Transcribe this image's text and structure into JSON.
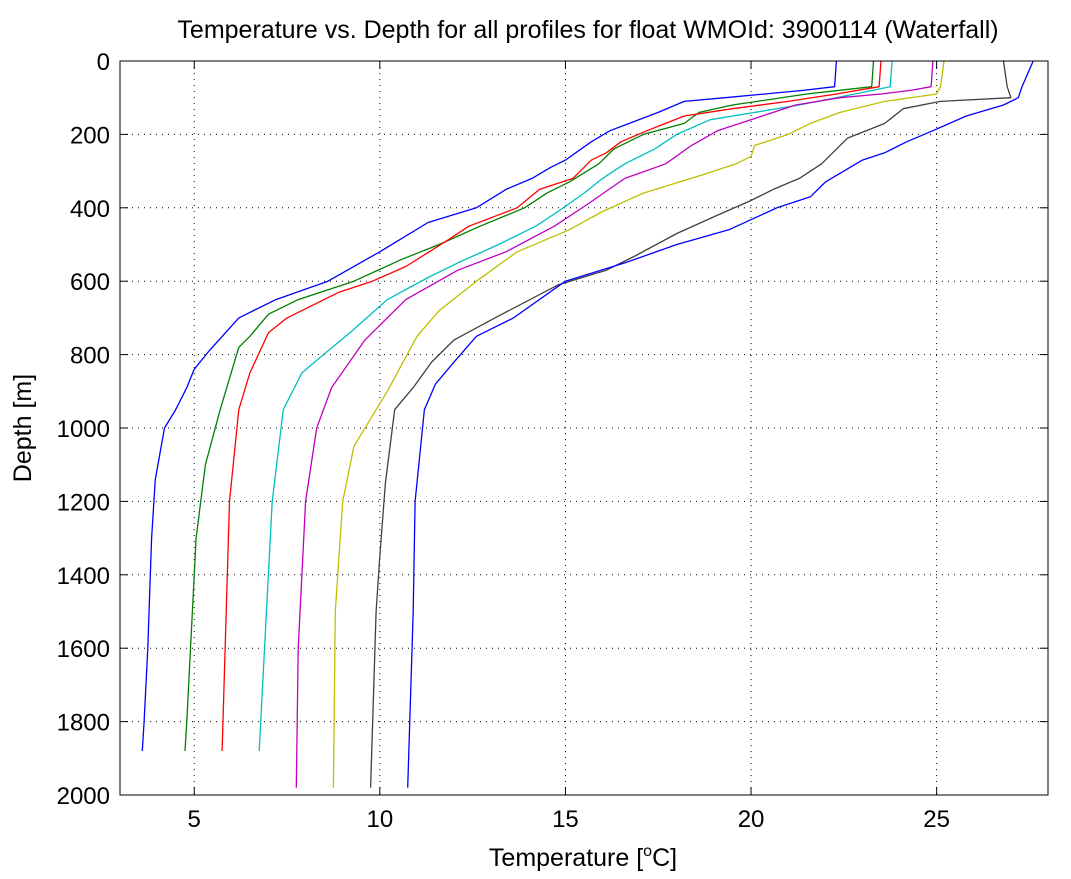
{
  "chart_data": {
    "type": "line",
    "title": "Temperature vs. Depth for all profiles for float WMOId: 3900114 (Waterfall)",
    "xlabel_main": "Temperature [",
    "xlabel_sup": "o",
    "xlabel_end": "C]",
    "ylabel": "Depth [m]",
    "xlim": [
      3,
      28
    ],
    "ylim": [
      0,
      2000
    ],
    "y_reversed": true,
    "grid": true,
    "x_ticks": [
      5,
      10,
      15,
      20,
      25
    ],
    "y_ticks": [
      0,
      200,
      400,
      600,
      800,
      1000,
      1200,
      1400,
      1600,
      1800,
      2000
    ],
    "series": [
      {
        "color": "#0000ff",
        "x": [
          22.3,
          22.25,
          21.4,
          19.3,
          18.2,
          17.5,
          16.2,
          15.7,
          15.0,
          14.6,
          14.1,
          13.4,
          12.6,
          11.3,
          10.0,
          8.6,
          7.2,
          6.2,
          5.4,
          5.0,
          4.8,
          4.5,
          4.2,
          3.95,
          3.85,
          3.75,
          3.65,
          3.6
        ],
        "y": [
          0,
          70,
          80,
          100,
          110,
          140,
          190,
          220,
          270,
          290,
          320,
          350,
          400,
          440,
          520,
          600,
          650,
          700,
          790,
          840,
          890,
          950,
          1000,
          1140,
          1300,
          1600,
          1800,
          1880
        ]
      },
      {
        "color": "#008000",
        "x": [
          23.3,
          23.25,
          21.5,
          19.5,
          18.6,
          18.2,
          17.1,
          16.3,
          15.9,
          15.1,
          14.5,
          13.9,
          12.7,
          11.6,
          10.6,
          9.3,
          7.8,
          7.0,
          6.5,
          6.2,
          5.7,
          5.3,
          5.05,
          4.8,
          4.75
        ],
        "y": [
          0,
          70,
          90,
          120,
          140,
          170,
          200,
          240,
          280,
          330,
          360,
          400,
          450,
          500,
          540,
          600,
          650,
          690,
          750,
          780,
          950,
          1100,
          1300,
          1800,
          1880
        ]
      },
      {
        "color": "#ff0000",
        "x": [
          23.5,
          23.45,
          22.3,
          21.0,
          19.5,
          18.2,
          17.2,
          16.5,
          16.1,
          15.7,
          15.2,
          14.3,
          13.7,
          12.4,
          11.8,
          10.7,
          9.8,
          8.9,
          7.5,
          7.0,
          6.5,
          6.2,
          5.95,
          5.75
        ],
        "y": [
          0,
          70,
          90,
          110,
          130,
          150,
          190,
          220,
          250,
          270,
          320,
          350,
          400,
          450,
          490,
          560,
          600,
          630,
          700,
          740,
          850,
          950,
          1200,
          1880
        ]
      },
      {
        "color": "#00bfbf",
        "x": [
          23.8,
          23.75,
          22.8,
          21.3,
          20.1,
          18.9,
          18.0,
          17.4,
          16.6,
          16.0,
          15.5,
          14.8,
          14.2,
          13.2,
          12.1,
          11.3,
          10.2,
          9.2,
          8.6,
          7.9,
          7.4,
          7.1,
          6.75
        ],
        "y": [
          0,
          70,
          90,
          120,
          140,
          160,
          200,
          240,
          280,
          320,
          360,
          410,
          450,
          500,
          550,
          590,
          650,
          740,
          790,
          850,
          950,
          1200,
          1880
        ]
      },
      {
        "color": "#bf00bf",
        "x": [
          24.9,
          24.85,
          24.3,
          23.5,
          22.4,
          21.2,
          20.3,
          19.1,
          18.4,
          17.7,
          16.6,
          15.6,
          14.7,
          13.4,
          12.1,
          10.7,
          9.6,
          8.7,
          8.3,
          8.0,
          7.8,
          7.75
        ],
        "y": [
          0,
          70,
          80,
          90,
          100,
          120,
          150,
          190,
          230,
          280,
          320,
          390,
          450,
          520,
          570,
          650,
          760,
          890,
          1000,
          1200,
          1600,
          1980
        ]
      },
      {
        "color": "#bfbf00",
        "x": [
          25.2,
          25.1,
          25.0,
          23.6,
          22.4,
          21.6,
          21.0,
          20.1,
          20.0,
          19.6,
          18.7,
          17.1,
          16.0,
          15.1,
          13.7,
          12.6,
          11.6,
          11.0,
          10.2,
          9.3,
          9.0,
          8.8,
          8.75
        ],
        "y": [
          0,
          70,
          90,
          110,
          140,
          170,
          200,
          230,
          260,
          280,
          310,
          360,
          410,
          460,
          520,
          600,
          680,
          750,
          900,
          1050,
          1200,
          1500,
          1980
        ]
      },
      {
        "color": "#404040",
        "x": [
          26.8,
          26.9,
          27.0,
          25.1,
          24.1,
          23.6,
          22.6,
          21.9,
          21.3,
          20.6,
          20.0,
          19.1,
          18.0,
          16.9,
          16.1,
          14.8,
          13.1,
          12.0,
          11.4,
          10.9,
          10.4,
          10.15,
          10.0,
          9.9,
          9.75
        ],
        "y": [
          0,
          70,
          100,
          110,
          130,
          170,
          210,
          280,
          320,
          350,
          380,
          420,
          470,
          530,
          570,
          610,
          700,
          760,
          820,
          890,
          950,
          1150,
          1350,
          1500,
          1980
        ]
      },
      {
        "color": "#0000ff",
        "x": [
          27.6,
          27.3,
          27.2,
          26.8,
          25.8,
          24.9,
          24.2,
          23.6,
          23.0,
          22.0,
          21.6,
          20.7,
          19.4,
          18.0,
          16.6,
          15.0,
          13.6,
          12.6,
          12.0,
          11.5,
          11.2,
          10.95,
          10.9,
          10.75
        ],
        "y": [
          0,
          70,
          100,
          120,
          150,
          190,
          220,
          250,
          270,
          330,
          370,
          400,
          460,
          500,
          550,
          600,
          700,
          750,
          820,
          880,
          950,
          1200,
          1500,
          1980
        ]
      }
    ]
  }
}
